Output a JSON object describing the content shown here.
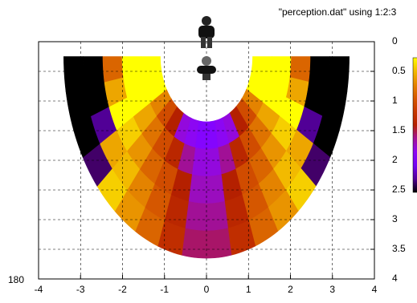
{
  "chart_data": {
    "type": "polar-heatmap",
    "title": "\"perception.dat\" using 1:2:3",
    "corner_label": "180",
    "xlim": [
      -4,
      4
    ],
    "xticks": [
      -4,
      -3,
      -2,
      -1,
      0,
      1,
      2,
      3,
      4
    ],
    "ylim": [
      0,
      4
    ],
    "yticks": [
      0,
      0.5,
      1,
      1.5,
      2,
      2.5,
      3,
      3.5,
      4
    ],
    "y_reversed": true,
    "grid": true,
    "cblim": [
      0,
      3
    ],
    "center": [
      0,
      0.25
    ],
    "theta_edges": [
      0,
      10,
      20,
      30,
      40,
      50,
      60,
      70,
      80,
      90,
      100,
      110,
      120,
      130,
      140,
      150,
      160,
      170,
      180
    ],
    "r_edges": [
      1.1,
      1.56,
      2.02,
      2.48,
      2.94,
      3.4
    ],
    "values": [
      [
        3,
        3,
        3,
        2.4,
        2,
        1.5,
        1,
        0.9,
        0.8,
        0.8,
        0.9,
        1,
        1.5,
        2,
        2.4,
        3,
        3,
        3
      ],
      [
        3,
        3,
        3,
        2.6,
        2.3,
        2,
        1.6,
        1.2,
        1,
        1,
        1.2,
        1.6,
        2,
        2.3,
        2.6,
        3,
        3,
        3
      ],
      [
        2.2,
        2.6,
        3,
        2.8,
        2.5,
        2.2,
        2,
        1.5,
        1.1,
        1.1,
        1.5,
        2,
        2.2,
        2.5,
        2.8,
        3,
        2.6,
        2.2
      ],
      [
        0,
        0,
        0.3,
        2.6,
        2.7,
        2.4,
        2.1,
        1.6,
        1.2,
        1.2,
        1.6,
        2.1,
        2.4,
        2.7,
        2.6,
        0.3,
        0,
        0
      ],
      [
        0,
        0,
        0,
        0.2,
        2.8,
        2.5,
        2.2,
        1.7,
        1.3,
        1.3,
        1.7,
        2.2,
        2.5,
        2.8,
        0.2,
        0,
        0,
        0
      ]
    ]
  }
}
